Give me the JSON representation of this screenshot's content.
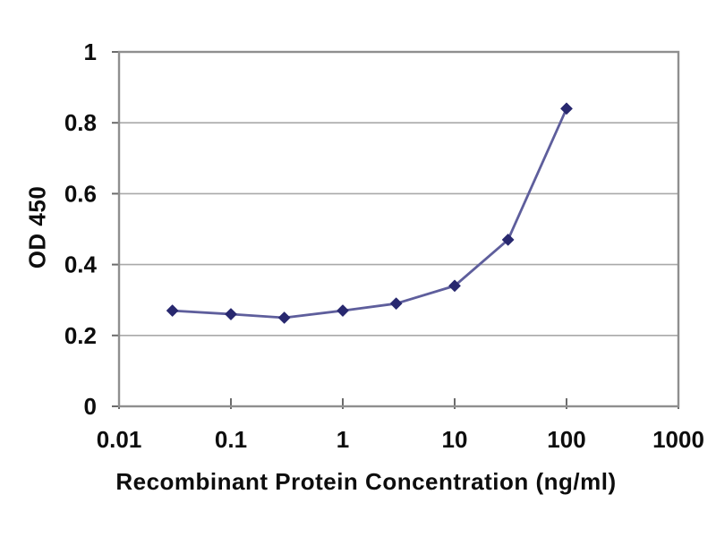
{
  "figure": {
    "background_color": "#ffffff"
  },
  "chart_data": {
    "type": "line",
    "title": "",
    "xlabel": "Recombinant Protein Concentration (ng/ml)",
    "ylabel": "OD 450",
    "x_scale": "log",
    "xlim": [
      0.01,
      1000
    ],
    "ylim": [
      0,
      1
    ],
    "x_ticks": [
      0.01,
      0.1,
      1,
      10,
      100,
      1000
    ],
    "x_tick_labels": [
      "0.01",
      "0.1",
      "1",
      "10",
      "100",
      "1000"
    ],
    "y_ticks": [
      0,
      0.2,
      0.4,
      0.6,
      0.8,
      1
    ],
    "y_tick_labels": [
      "0",
      "0.2",
      "0.4",
      "0.6",
      "0.8",
      "1"
    ],
    "grid": "horizontal-major-only",
    "legend": "none",
    "series": [
      {
        "name": "OD 450",
        "marker": "diamond",
        "x": [
          0.03,
          0.1,
          0.3,
          1,
          3,
          10,
          30,
          100
        ],
        "y": [
          0.27,
          0.26,
          0.25,
          0.27,
          0.29,
          0.34,
          0.47,
          0.84
        ]
      }
    ],
    "colors": {
      "line": "#5e5e9c",
      "marker": "#28286f",
      "grid": "#a9a9a9",
      "plot_border": "#8f8f8f",
      "tick": "#6b6b6b",
      "text": "#0d0d0d",
      "plot_background": "#ffffff"
    }
  }
}
